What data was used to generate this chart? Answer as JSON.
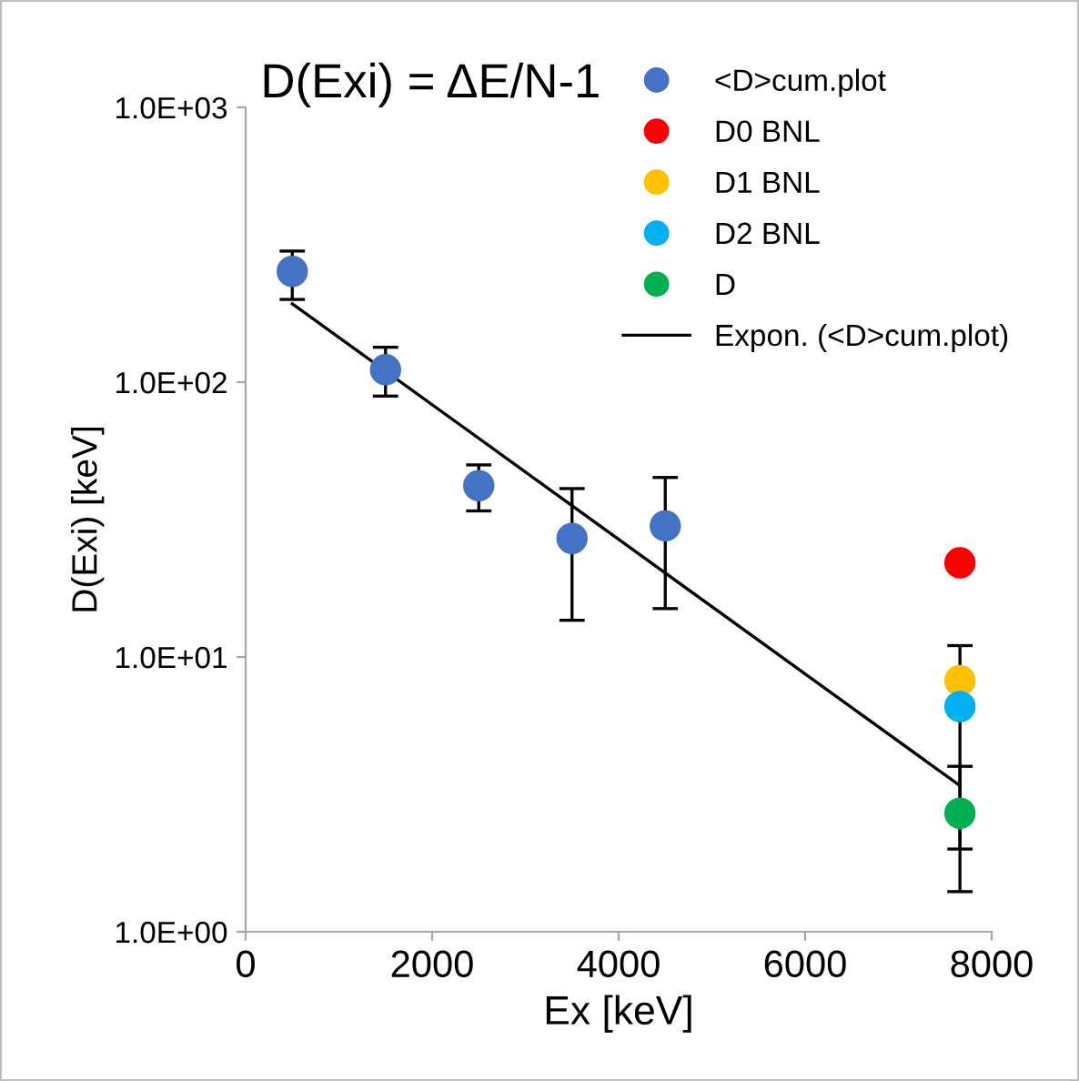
{
  "chart_data": {
    "type": "scatter",
    "title": "D(Exi) = ΔE/N-1",
    "xlabel": "Ex [keV]",
    "ylabel": "D(Exi) [keV]",
    "log": "y",
    "xlim": [
      0,
      8000
    ],
    "xticks": [
      0,
      2000,
      4000,
      6000,
      8000
    ],
    "ylim": [
      1,
      1000
    ],
    "yticks": [
      {
        "value": 1,
        "label": "1.0E+00"
      },
      {
        "value": 10,
        "label": "1.0E+01"
      },
      {
        "value": 100,
        "label": "1.0E+02"
      },
      {
        "value": 1000,
        "label": "1.0E+03"
      }
    ],
    "grid": false,
    "legend": "top right",
    "series": [
      {
        "name": "<D>cum.plot",
        "color": "#4472c4",
        "marker": "circle",
        "x": [
          500,
          1500,
          2500,
          3500,
          4500
        ],
        "values": [
          253,
          111,
          42,
          27,
          30
        ],
        "errors": [
          [
            200,
            300
          ],
          [
            89,
            134
          ],
          [
            34,
            50
          ],
          [
            13.6,
            41
          ],
          [
            15,
            45
          ]
        ]
      },
      {
        "name": "D0 BNL",
        "color": "#ff0000",
        "marker": "circle",
        "x": [
          7660
        ],
        "values": [
          22
        ]
      },
      {
        "name": "D1 BNL",
        "color": "#ffc000",
        "marker": "circle",
        "x": [
          7660
        ],
        "values": [
          8.2
        ]
      },
      {
        "name": "D2 BNL",
        "color": "#00b0f0",
        "marker": "circle",
        "x": [
          7660
        ],
        "values": [
          6.6
        ],
        "errors": [
          [
            2.0,
            11
          ]
        ]
      },
      {
        "name": "D",
        "color": "#00b050",
        "marker": "circle",
        "x": [
          7660
        ],
        "values": [
          2.7
        ],
        "errors": [
          [
            1.4,
            4.0
          ]
        ]
      },
      {
        "name": "Expon. (<D>cum.plot)",
        "type": "line",
        "color": "#000000",
        "x": [
          500,
          7660
        ],
        "values": [
          193,
          3.4
        ]
      }
    ]
  }
}
